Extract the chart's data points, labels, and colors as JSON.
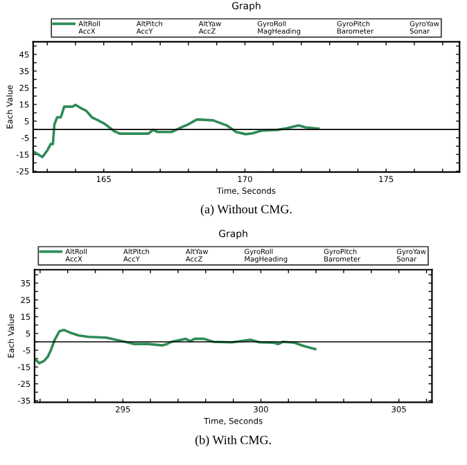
{
  "chart_data": [
    {
      "type": "line",
      "title": "Graph",
      "xlabel": "Time, Seconds",
      "ylabel": "Each Value",
      "xlim": [
        162.5,
        177.6
      ],
      "ylim": [
        -25.5,
        52.5
      ],
      "xticks": [
        {
          "value": 163,
          "label": null
        },
        {
          "value": 164,
          "label": null
        },
        165,
        {
          "value": 166,
          "label": null
        },
        {
          "value": 167,
          "label": null
        },
        {
          "value": 168,
          "label": null
        },
        {
          "value": 169,
          "label": null
        },
        170,
        {
          "value": 171,
          "label": null
        },
        {
          "value": 172,
          "label": null
        },
        {
          "value": 173,
          "label": null
        },
        {
          "value": 174,
          "label": null
        },
        175,
        {
          "value": 176,
          "label": null
        },
        {
          "value": 177,
          "label": null
        }
      ],
      "yticks": [
        {
          "value": -25,
          "label": "-25"
        },
        {
          "value": -20,
          "label": null
        },
        {
          "value": -15,
          "label": "-15"
        },
        {
          "value": -10,
          "label": null
        },
        {
          "value": -5,
          "label": "-5"
        },
        {
          "value": 0,
          "label": null
        },
        5,
        {
          "value": 10,
          "label": null
        },
        15,
        {
          "value": 20,
          "label": null
        },
        25,
        {
          "value": 30,
          "label": null
        },
        35,
        {
          "value": 40,
          "label": null
        },
        45,
        {
          "value": 50,
          "label": null
        }
      ],
      "ref_lines": [
        {
          "axis": "y",
          "value": 0,
          "color": "#000000"
        }
      ],
      "legend": "top",
      "grid": false,
      "annotations": [
        "AccX",
        "AltPitch",
        "AccY",
        "AltYaw",
        "AccZ",
        "GyroRoll",
        "MagHeading",
        "GyroPitch",
        "Barometer",
        "GyroYaw",
        "Sonar",
        "(a) Without CMG."
      ],
      "series": [
        {
          "name": "AltRoll",
          "color": "#2e8b57",
          "x": [
            162.53,
            162.83,
            163.0,
            163.12,
            163.2,
            163.25,
            163.35,
            163.48,
            163.6,
            163.9,
            164.0,
            164.2,
            164.38,
            164.58,
            164.8,
            165.03,
            165.36,
            165.57,
            166.58,
            166.75,
            166.9,
            167.4,
            167.73,
            167.97,
            168.3,
            168.87,
            169.36,
            169.69,
            170.02,
            170.26,
            170.59,
            171.16,
            171.49,
            171.9,
            172.14,
            172.6
          ],
          "values": [
            -13.4,
            -16.5,
            -12.6,
            -8.7,
            -8.7,
            2.9,
            7.3,
            7.3,
            13.7,
            13.7,
            14.8,
            12.7,
            11.2,
            7.3,
            5.5,
            3.4,
            -0.9,
            -2.5,
            -2.5,
            -0.2,
            -1.5,
            -1.5,
            1.1,
            2.9,
            6.0,
            5.5,
            2.4,
            -1.5,
            -2.8,
            -2.3,
            -0.7,
            -0.2,
            0.8,
            2.4,
            1.3,
            0.5
          ]
        }
      ]
    },
    {
      "type": "line",
      "title": "Graph",
      "xlabel": "Time, Seconds",
      "ylabel": "Each Value",
      "xlim": [
        291.8,
        306.2
      ],
      "ylim": [
        -36,
        43
      ],
      "xticks": [
        {
          "value": 292,
          "label": null
        },
        {
          "value": 293,
          "label": null
        },
        {
          "value": 294,
          "label": null
        },
        295,
        {
          "value": 296,
          "label": null
        },
        {
          "value": 297,
          "label": null
        },
        {
          "value": 298,
          "label": null
        },
        {
          "value": 299,
          "label": null
        },
        300,
        {
          "value": 301,
          "label": null
        },
        {
          "value": 302,
          "label": null
        },
        {
          "value": 303,
          "label": null
        },
        {
          "value": 304,
          "label": null
        },
        305,
        {
          "value": 306,
          "label": null
        }
      ],
      "yticks": [
        {
          "value": -35,
          "label": "-35"
        },
        {
          "value": -30,
          "label": null
        },
        {
          "value": -25,
          "label": "-25"
        },
        {
          "value": -20,
          "label": null
        },
        {
          "value": -15,
          "label": "-15"
        },
        {
          "value": -10,
          "label": null
        },
        {
          "value": -5,
          "label": "-5"
        },
        {
          "value": 0,
          "label": null
        },
        5,
        {
          "value": 10,
          "label": null
        },
        15,
        {
          "value": 20,
          "label": null
        },
        25,
        {
          "value": 30,
          "label": null
        },
        35,
        {
          "value": 40,
          "label": null
        }
      ],
      "ref_lines": [
        {
          "axis": "y",
          "value": 0,
          "color": "#000000"
        }
      ],
      "legend": "top",
      "grid": false,
      "annotations": [
        "AccX",
        "AltPitch",
        "AccY",
        "AltYaw",
        "AccZ",
        "GyroRoll",
        "MagHeading",
        "GyroPitch",
        "Barometer",
        "GyroYaw",
        "Sonar",
        "(b) With CMG."
      ],
      "series": [
        {
          "name": "AltRoll",
          "color": "#2e8b57",
          "x": [
            291.81,
            291.97,
            292.14,
            292.28,
            292.4,
            292.53,
            292.7,
            292.87,
            293.07,
            293.4,
            293.74,
            294.41,
            294.75,
            295.08,
            295.42,
            295.92,
            296.43,
            296.6,
            296.76,
            297.27,
            297.44,
            297.6,
            297.94,
            298.28,
            298.95,
            299.62,
            299.96,
            300.46,
            300.63,
            300.8,
            301.22,
            301.55,
            301.97
          ],
          "values": [
            -10.2,
            -12.7,
            -11.4,
            -8.9,
            -4.6,
            1.2,
            6.3,
            7.1,
            5.6,
            3.8,
            3.0,
            2.5,
            1.2,
            0,
            -1.3,
            -1.3,
            -2.1,
            -1.3,
            0,
            1.8,
            0.5,
            1.8,
            1.8,
            0,
            -0.3,
            1.2,
            -0.3,
            -0.5,
            -1.3,
            0,
            -0.5,
            -2.5,
            -4.3
          ]
        }
      ]
    }
  ]
}
